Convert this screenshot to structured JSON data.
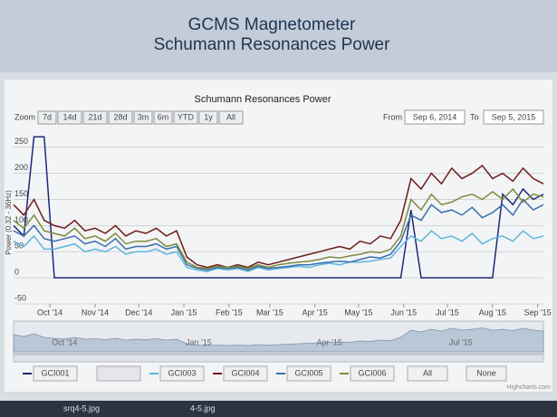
{
  "header": {
    "title": "GCMS Magnetometer",
    "subtitle": "Schumann Resonances Power"
  },
  "range_selector": {
    "label": "Zoom",
    "buttons": [
      "7d",
      "14d",
      "21d",
      "28d",
      "3m",
      "6m",
      "YTD",
      "1y",
      "All"
    ],
    "from_label": "From",
    "from": "Sep 6, 2014",
    "to_label": "To",
    "to": "Sep 5, 2015"
  },
  "legend_controls": [
    "All",
    "None"
  ],
  "credits": "Highcharts.com",
  "taskbar": [
    "srq4-5.jpg",
    "4-5.jpg"
  ],
  "chart_data": {
    "type": "line",
    "title": "Schumann Resonances Power",
    "y_label": "Power (0.32 - 36Hz)",
    "x": [
      "2014-09-06",
      "2014-09-13",
      "2014-09-20",
      "2014-09-27",
      "2014-10-04",
      "2014-10-11",
      "2014-10-18",
      "2014-10-25",
      "2014-11-01",
      "2014-11-08",
      "2014-11-15",
      "2014-11-22",
      "2014-11-29",
      "2014-12-06",
      "2014-12-13",
      "2014-12-20",
      "2014-12-27",
      "2015-01-03",
      "2015-01-10",
      "2015-01-17",
      "2015-01-24",
      "2015-01-31",
      "2015-02-07",
      "2015-02-14",
      "2015-02-21",
      "2015-02-28",
      "2015-03-07",
      "2015-03-14",
      "2015-03-21",
      "2015-03-28",
      "2015-04-04",
      "2015-04-11",
      "2015-04-18",
      "2015-04-25",
      "2015-05-02",
      "2015-05-09",
      "2015-05-16",
      "2015-05-23",
      "2015-05-30",
      "2015-06-06",
      "2015-06-13",
      "2015-06-20",
      "2015-06-27",
      "2015-07-04",
      "2015-07-11",
      "2015-07-18",
      "2015-07-25",
      "2015-08-01",
      "2015-08-08",
      "2015-08-15",
      "2015-08-22",
      "2015-08-29",
      "2015-09-05"
    ],
    "series": [
      {
        "name": "GCI001",
        "color": "#1c2a7a",
        "values": [
          100,
          80,
          270,
          270,
          0,
          0,
          0,
          0,
          0,
          0,
          0,
          0,
          0,
          0,
          0,
          0,
          0,
          0,
          0,
          0,
          0,
          0,
          0,
          0,
          0,
          0,
          0,
          0,
          0,
          0,
          0,
          0,
          0,
          0,
          0,
          0,
          0,
          0,
          0,
          130,
          0,
          0,
          0,
          0,
          0,
          0,
          0,
          0,
          160,
          140,
          170,
          150,
          160
        ]
      },
      {
        "name": "GCI003",
        "color": "#5db6dc",
        "values": [
          70,
          60,
          80,
          55,
          55,
          60,
          65,
          50,
          55,
          50,
          60,
          45,
          50,
          50,
          55,
          45,
          50,
          20,
          15,
          12,
          18,
          15,
          18,
          12,
          20,
          15,
          18,
          20,
          22,
          20,
          25,
          28,
          25,
          30,
          30,
          32,
          35,
          38,
          60,
          80,
          70,
          90,
          75,
          80,
          70,
          85,
          65,
          75,
          80,
          70,
          90,
          75,
          80
        ]
      },
      {
        "name": "GCI004",
        "color": "#6e1c1c",
        "values": [
          140,
          120,
          150,
          110,
          100,
          95,
          110,
          90,
          95,
          85,
          100,
          80,
          90,
          85,
          95,
          80,
          90,
          40,
          25,
          20,
          25,
          20,
          25,
          20,
          30,
          25,
          30,
          35,
          40,
          45,
          50,
          55,
          60,
          55,
          70,
          65,
          80,
          75,
          110,
          190,
          170,
          200,
          180,
          210,
          190,
          200,
          215,
          190,
          200,
          185,
          210,
          190,
          180
        ]
      },
      {
        "name": "GCI005",
        "color": "#3a6fae",
        "values": [
          90,
          80,
          100,
          75,
          70,
          75,
          80,
          65,
          70,
          60,
          75,
          55,
          60,
          60,
          65,
          55,
          60,
          25,
          18,
          15,
          20,
          18,
          20,
          15,
          22,
          18,
          20,
          22,
          25,
          25,
          28,
          30,
          32,
          30,
          35,
          40,
          38,
          45,
          70,
          120,
          110,
          140,
          125,
          130,
          120,
          135,
          115,
          125,
          140,
          120,
          150,
          130,
          140
        ]
      },
      {
        "name": "GCI006",
        "color": "#7d8c3c",
        "values": [
          110,
          95,
          120,
          90,
          85,
          80,
          95,
          75,
          80,
          70,
          85,
          65,
          70,
          70,
          75,
          60,
          65,
          30,
          20,
          18,
          22,
          20,
          22,
          18,
          25,
          20,
          25,
          28,
          30,
          32,
          35,
          40,
          38,
          42,
          45,
          50,
          48,
          55,
          80,
          150,
          130,
          160,
          140,
          145,
          155,
          160,
          150,
          165,
          150,
          170,
          145,
          160,
          155
        ]
      }
    ],
    "xlim": [
      "2014-09-06",
      "2015-09-05"
    ],
    "xticks": [
      {
        "value": "2014-10-01",
        "label": "Oct '14"
      },
      {
        "value": "2014-11-01",
        "label": "Nov '14"
      },
      {
        "value": "2014-12-01",
        "label": "Dec '14"
      },
      {
        "value": "2015-01-01",
        "label": "Jan '15"
      },
      {
        "value": "2015-02-01",
        "label": "Feb '15"
      },
      {
        "value": "2015-03-01",
        "label": "Mar '15"
      },
      {
        "value": "2015-04-01",
        "label": "Apr '15"
      },
      {
        "value": "2015-05-01",
        "label": "May '15"
      },
      {
        "value": "2015-06-01",
        "label": "Jun '15"
      },
      {
        "value": "2015-07-01",
        "label": "Jul '15"
      },
      {
        "value": "2015-08-01",
        "label": "Aug '15"
      },
      {
        "value": "2015-09-01",
        "label": "Sep '15"
      }
    ],
    "navigator_xticks": [
      {
        "value": "2014-10-01",
        "label": "Oct '14"
      },
      {
        "value": "2015-01-01",
        "label": "Jan '15"
      },
      {
        "value": "2015-04-01",
        "label": "Apr '15"
      },
      {
        "value": "2015-07-01",
        "label": "Jul '15"
      }
    ],
    "ylim": [
      -50,
      260
    ],
    "yticks": [
      -50,
      0,
      50,
      100,
      150,
      200,
      250
    ],
    "grid": true
  }
}
